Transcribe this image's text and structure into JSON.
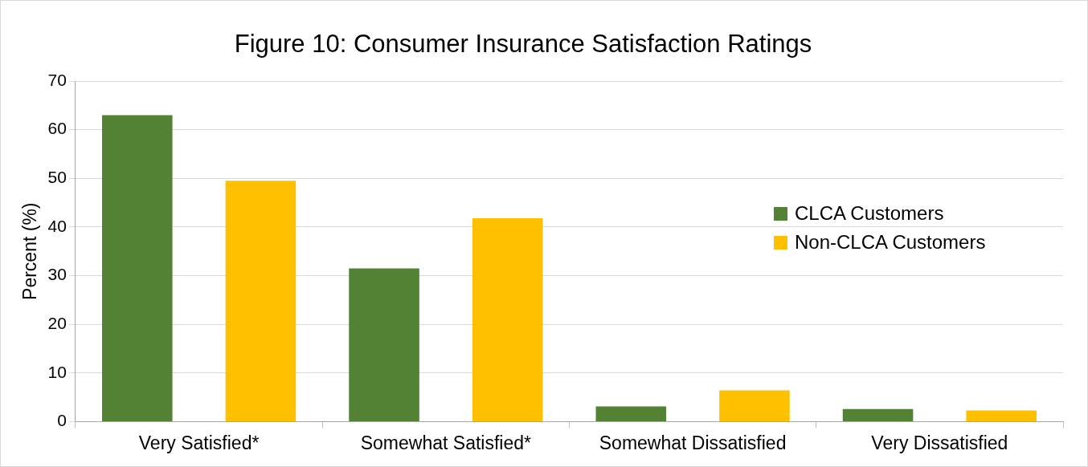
{
  "chart_data": {
    "type": "bar",
    "title": "Figure 10: Consumer Insurance Satisfaction Ratings",
    "ylabel": "Percent (%)",
    "categories": [
      "Very Satisfied*",
      "Somewhat Satisfied*",
      "Somewhat Dissatisfied",
      "Very Dissatisfied"
    ],
    "series": [
      {
        "name": "CLCA Customers",
        "color": "#548235",
        "values": [
          63,
          31.5,
          3.1,
          2.6
        ]
      },
      {
        "name": "Non-CLCA Customers",
        "color": "#ffc000",
        "values": [
          49.5,
          41.8,
          6.4,
          2.3
        ]
      }
    ],
    "ylim": [
      0,
      70
    ],
    "yticks": [
      0,
      10,
      20,
      30,
      40,
      50,
      60,
      70
    ],
    "grid": "y",
    "legend": "right"
  }
}
